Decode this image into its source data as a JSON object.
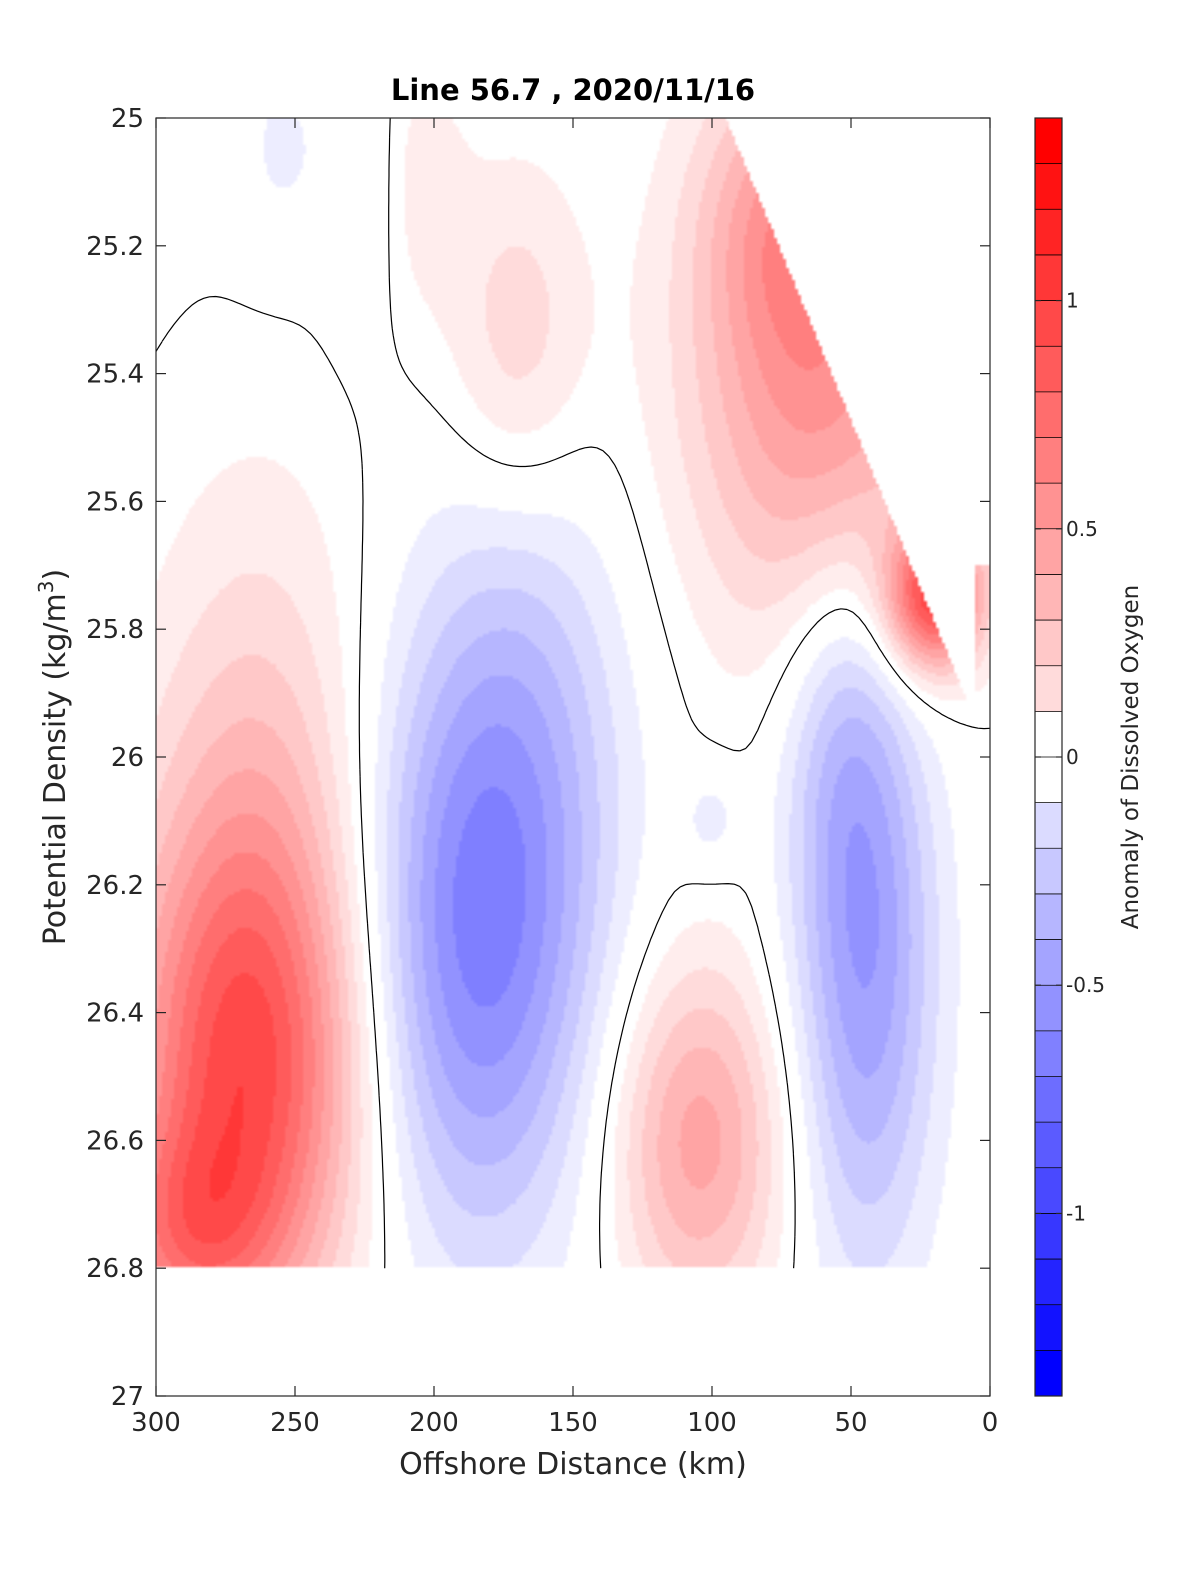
{
  "chart_data": {
    "type": "heatmap",
    "title": "Line 56.7 , 2020/11/16",
    "xlabel": "Offshore Distance (km)",
    "ylabel_text": "Potential Density (kg/m",
    "ylabel_sup": "3",
    "ylabel_close": ")",
    "colorbar_label": "Anomaly of Dissolved Oxygen",
    "xlim": [
      300,
      0
    ],
    "ylim": [
      25,
      27
    ],
    "x_reversed": true,
    "y_reversed": true,
    "x_ticks": [
      "300",
      "250",
      "200",
      "150",
      "100",
      "50",
      "0"
    ],
    "y_ticks": [
      "25",
      "25.2",
      "25.4",
      "25.6",
      "25.8",
      "26",
      "26.2",
      "26.4",
      "26.6",
      "26.8",
      "27"
    ],
    "colorbar_ticks": [
      "1",
      "0.5",
      "0",
      "-0.5",
      "-1"
    ],
    "colorbar_range": [
      -1.4,
      1.4
    ],
    "contour_levels_step": 0.1,
    "colormap": {
      "negative": "#0000ff",
      "zero": "#ffffff",
      "positive": "#ff0000"
    },
    "features": [
      {
        "x": 268,
        "y": 26.5,
        "sx": 30,
        "sy": 0.28,
        "a": 0.95
      },
      {
        "x": 262,
        "y": 26.05,
        "sx": 30,
        "sy": 0.35,
        "a": 0.3
      },
      {
        "x": 290,
        "y": 26.75,
        "sx": 22,
        "sy": 0.12,
        "a": 0.45
      },
      {
        "x": 185,
        "y": 26.28,
        "sx": 30,
        "sy": 0.34,
        "a": -0.72
      },
      {
        "x": 165,
        "y": 25.9,
        "sx": 25,
        "sy": 0.3,
        "a": -0.2
      },
      {
        "x": 105,
        "y": 26.6,
        "sx": 22,
        "sy": 0.2,
        "a": 0.55
      },
      {
        "x": 45,
        "y": 26.3,
        "sx": 18,
        "sy": 0.35,
        "a": -0.6
      },
      {
        "x": 55,
        "y": 25.95,
        "sx": 15,
        "sy": 0.2,
        "a": -0.2
      },
      {
        "x": 60,
        "y": 25.4,
        "sx": 35,
        "sy": 0.3,
        "a": 0.65
      },
      {
        "x": 20,
        "y": 25.75,
        "sx": 12,
        "sy": 0.08,
        "a": 1.0
      },
      {
        "x": 75,
        "y": 25.15,
        "sx": 20,
        "sy": 0.15,
        "a": 0.3
      },
      {
        "x": 170,
        "y": 25.35,
        "sx": 18,
        "sy": 0.2,
        "a": 0.28
      },
      {
        "x": 205,
        "y": 25.1,
        "sx": 12,
        "sy": 0.15,
        "a": 0.15
      },
      {
        "x": 255,
        "y": 25.05,
        "sx": 12,
        "sy": 0.12,
        "a": -0.12
      },
      {
        "x": 225,
        "y": 25.1,
        "sx": 10,
        "sy": 0.15,
        "a": -0.12
      },
      {
        "x": 100,
        "y": 26.1,
        "sx": 8,
        "sy": 0.06,
        "a": -0.15
      }
    ],
    "masked_regions": [
      {
        "name": "upper-right-no-data",
        "x_from": 0,
        "x_to": 95,
        "y_top": 25.0
      },
      {
        "name": "bottom-no-data",
        "y_from": 26.8,
        "y_to": 27.0
      }
    ]
  }
}
